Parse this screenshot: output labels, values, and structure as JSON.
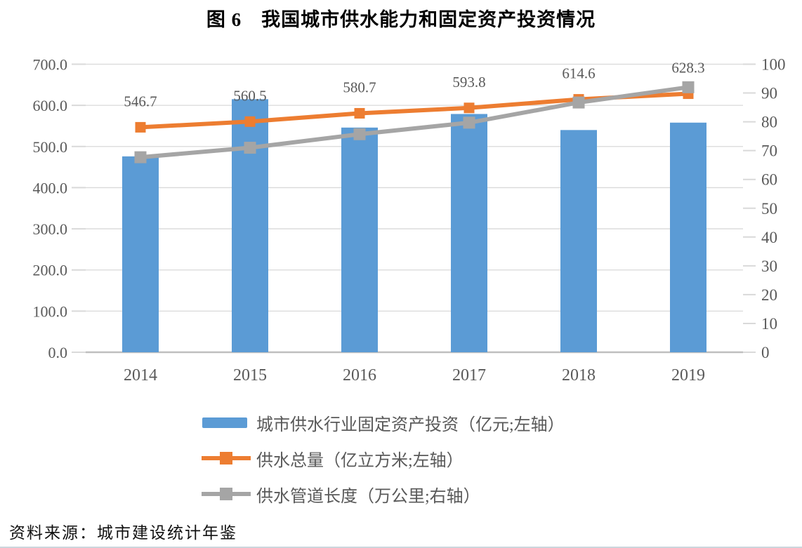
{
  "page": {
    "title": "图 6　我国城市供水能力和固定资产投资情况",
    "source": "资料来源：城市建设统计年鉴"
  },
  "colors": {
    "bar_blue": "#5b9bd5",
    "line_orange": "#ed7d31",
    "line_gray": "#a5a5a5",
    "gridline": "#d9d9d9",
    "axis_line": "#bfbfbf",
    "tick_text": "#595959",
    "data_label_text": "#595959"
  },
  "legend": {
    "items": [
      {
        "label": "城市供水行业固定资产投资（亿元;左轴）",
        "swatch": "bar",
        "color": "#5b9bd5"
      },
      {
        "label": "供水总量（亿立方米;左轴）",
        "swatch": "line-marker",
        "color": "#ed7d31"
      },
      {
        "label": "供水管道长度（万公里;右轴）",
        "swatch": "line-marker",
        "color": "#a5a5a5"
      }
    ]
  },
  "chart_data": {
    "type": "combo",
    "title": "图 6　我国城市供水能力和固定资产投资情况",
    "categories": [
      "2014",
      "2015",
      "2016",
      "2017",
      "2018",
      "2019"
    ],
    "series": [
      {
        "name": "城市供水行业固定资产投资（亿元;左轴）",
        "type": "bar",
        "axis": "left",
        "color": "#5b9bd5",
        "values": [
          476,
          615,
          546,
          579,
          540,
          558
        ]
      },
      {
        "name": "供水总量（亿立方米;左轴）",
        "type": "line",
        "axis": "left",
        "color": "#ed7d31",
        "values": [
          546.7,
          560.5,
          580.7,
          593.8,
          614.6,
          628.3
        ],
        "data_labels": [
          "546.7",
          "560.5",
          "580.7",
          "593.8",
          "614.6",
          "628.3"
        ]
      },
      {
        "name": "供水管道长度（万公里;右轴）",
        "type": "line",
        "axis": "right",
        "color": "#a5a5a5",
        "values": [
          67.7,
          71.0,
          75.7,
          79.7,
          86.7,
          92.0
        ]
      }
    ],
    "left_axis": {
      "min": 0,
      "max": 700,
      "step": 100,
      "tick_labels": [
        "0.0",
        "100.0",
        "200.0",
        "300.0",
        "400.0",
        "500.0",
        "600.0",
        "700.0"
      ]
    },
    "right_axis": {
      "min": 0,
      "max": 100,
      "step": 10,
      "tick_labels": [
        "0",
        "10",
        "20",
        "30",
        "40",
        "50",
        "60",
        "70",
        "80",
        "90",
        "100"
      ]
    },
    "grid": "horizontal",
    "legend_position": "bottom-left-stacked"
  }
}
